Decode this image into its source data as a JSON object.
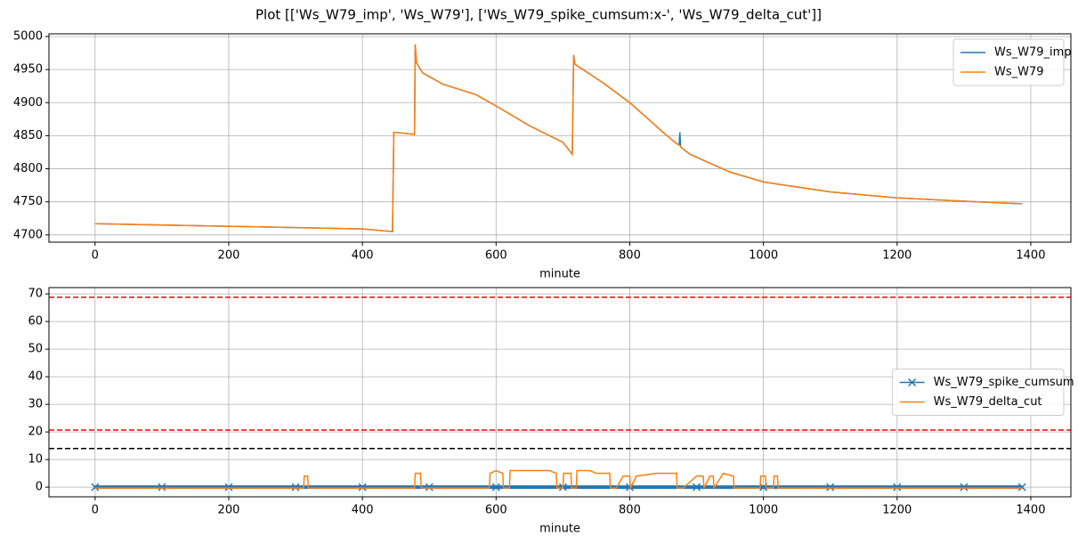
{
  "title": "Plot [['Ws_W79_imp', 'Ws_W79'], ['Ws_W79_spike_cumsum:x-', 'Ws_W79_delta_cut']]",
  "chart_data": [
    {
      "type": "line",
      "xlabel": "minute",
      "grid": true,
      "legend": "upper right",
      "xlim": [
        -69,
        1460
      ],
      "xticks": [
        0,
        200,
        400,
        600,
        800,
        1000,
        1200,
        1400
      ],
      "ylim": [
        4689,
        5004
      ],
      "yticks": [
        4700,
        4750,
        4800,
        4850,
        4900,
        4950,
        5000
      ],
      "x": [
        0,
        100,
        200,
        300,
        400,
        445,
        447,
        450,
        478,
        479,
        481,
        490,
        520,
        570,
        600,
        650,
        700,
        714,
        716,
        718,
        730,
        760,
        800,
        850,
        870,
        874,
        875,
        876,
        890,
        950,
        1000,
        1100,
        1200,
        1300,
        1387
      ],
      "series": [
        {
          "name": "Ws_W79_imp",
          "color": "#1f77b4",
          "values": [
            4717,
            4715,
            4713,
            4711,
            4709,
            4705,
            4855,
            4855,
            4852,
            4988,
            4960,
            4945,
            4928,
            4912,
            4895,
            4865,
            4840,
            4822,
            4972,
            4958,
            4950,
            4930,
            4900,
            4855,
            4838,
            4836,
            4855,
            4833,
            4822,
            4795,
            4780,
            4765,
            4756,
            4751,
            4747
          ]
        },
        {
          "name": "Ws_W79",
          "color": "#ff7f0e",
          "values": [
            4717,
            4715,
            4713,
            4711,
            4709,
            4705,
            4855,
            4855,
            4852,
            4988,
            4960,
            4945,
            4928,
            4912,
            4895,
            4865,
            4840,
            4822,
            4972,
            4958,
            4950,
            4930,
            4900,
            4855,
            4838,
            4836,
            4835,
            4833,
            4822,
            4795,
            4780,
            4765,
            4756,
            4751,
            4747
          ]
        }
      ]
    },
    {
      "type": "line",
      "xlabel": "minute",
      "grid": true,
      "legend": "center right",
      "xlim": [
        -69,
        1460
      ],
      "xticks": [
        0,
        200,
        400,
        600,
        800,
        1000,
        1200,
        1400
      ],
      "ylim": [
        -3.5,
        72.3
      ],
      "yticks": [
        0,
        10,
        20,
        30,
        40,
        50,
        60,
        70
      ],
      "hlines": [
        {
          "value": 68.8,
          "color": "#ff0000"
        },
        {
          "value": 20.7,
          "color": "#ff0000"
        },
        {
          "value": 14,
          "color": "#000000"
        }
      ],
      "series": [
        {
          "name": "Ws_W79_spike_cumsum",
          "color": "#1f77b4",
          "marker": "x",
          "x": [
            0,
            100,
            200,
            300,
            400,
            500,
            600,
            700,
            800,
            900,
            1000,
            1100,
            1200,
            1300,
            1387
          ],
          "values": [
            0,
            0,
            0,
            0,
            0,
            0,
            0,
            0,
            0,
            0,
            0,
            0,
            0,
            0,
            0
          ]
        },
        {
          "name": "Ws_W79_delta_cut",
          "color": "#ff7f0e",
          "x": [
            0,
            312,
            313,
            318,
            319,
            478,
            479,
            487,
            488,
            590,
            591,
            600,
            610,
            611,
            620,
            621,
            650,
            680,
            690,
            691,
            700,
            701,
            712,
            713,
            720,
            721,
            740,
            750,
            770,
            771,
            780,
            790,
            800,
            801,
            810,
            840,
            850,
            870,
            871,
            880,
            900,
            910,
            911,
            920,
            925,
            926,
            940,
            955,
            956,
            995,
            996,
            1003,
            1004,
            1015,
            1016,
            1021,
            1022,
            1387
          ],
          "values": [
            -0.3,
            -0.3,
            4,
            4,
            -0.3,
            -0.3,
            5,
            5,
            -0.3,
            -0.3,
            5,
            6,
            5,
            -0.3,
            -0.3,
            6,
            6,
            6,
            5,
            -0.3,
            -0.3,
            5,
            5,
            -0.3,
            -0.3,
            6,
            6,
            5,
            5,
            -0.3,
            -0.3,
            4,
            4,
            -0.3,
            4,
            5,
            5,
            5,
            -0.3,
            -0.3,
            4,
            4,
            -0.3,
            4,
            4,
            -0.3,
            5,
            4,
            -0.3,
            -0.3,
            4,
            4,
            -0.3,
            -0.3,
            4,
            4,
            -0.3,
            -0.3
          ]
        }
      ]
    }
  ]
}
